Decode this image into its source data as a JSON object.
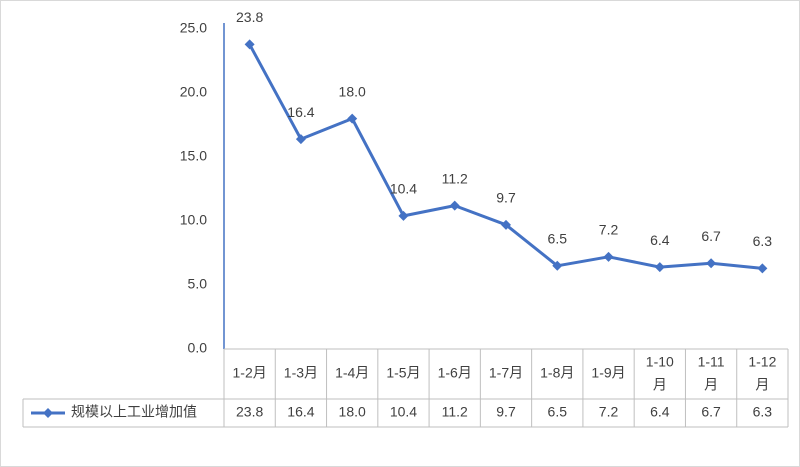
{
  "chart_data": {
    "type": "line",
    "categories": [
      "1-2月",
      "1-3月",
      "1-4月",
      "1-5月",
      "1-6月",
      "1-7月",
      "1-8月",
      "1-9月",
      "1-10月",
      "1-11月",
      "1-12月"
    ],
    "category_lines": [
      [
        "1-2月"
      ],
      [
        "1-3月"
      ],
      [
        "1-4月"
      ],
      [
        "1-5月"
      ],
      [
        "1-6月"
      ],
      [
        "1-7月"
      ],
      [
        "1-8月"
      ],
      [
        "1-9月"
      ],
      [
        "1-10",
        "月"
      ],
      [
        "1-11",
        "月"
      ],
      [
        "1-12",
        "月"
      ]
    ],
    "series": [
      {
        "name": "规模以上工业增加值",
        "values": [
          23.8,
          16.4,
          18.0,
          10.4,
          11.2,
          9.7,
          6.5,
          7.2,
          6.4,
          6.7,
          6.3
        ],
        "labels": [
          "23.8",
          "16.4",
          "18.0",
          "10.4",
          "11.2",
          "9.7",
          "6.5",
          "7.2",
          "6.4",
          "6.7",
          "6.3"
        ],
        "color": "#4472c4",
        "marker": "diamond"
      }
    ],
    "y_ticks": [
      "0.0",
      "5.0",
      "10.0",
      "15.0",
      "20.0",
      "25.0"
    ],
    "ylim": [
      0,
      25
    ],
    "grid": false,
    "data_table": true,
    "legend": "data-table-left",
    "title": "",
    "xlabel": "",
    "ylabel": ""
  },
  "colors": {
    "series": "#4472c4",
    "text": "#404040",
    "axis": "#bfbfbf",
    "table_border": "#bfbfbf"
  }
}
